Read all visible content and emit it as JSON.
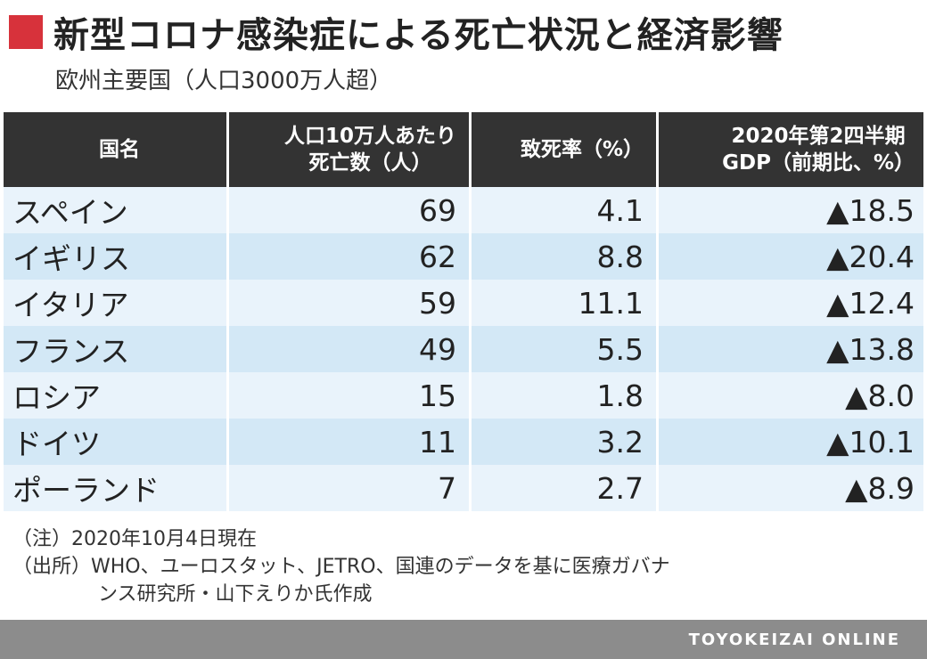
{
  "header": {
    "title": "新型コロナ感染症による死亡状況と経済影響",
    "subtitle": "欧州主要国（人口3000万人超）",
    "accent_color": "#d7323b"
  },
  "chart_data": {
    "type": "table",
    "columns": [
      "国名",
      "人口10万人あたり\n死亡数（人）",
      "致死率（%）",
      "2020年第2四半期\nGDP（前期比、%）"
    ],
    "rows": [
      [
        "スペイン",
        "69",
        "4.1",
        "▲18.5"
      ],
      [
        "イギリス",
        "62",
        "8.8",
        "▲20.4"
      ],
      [
        "イタリア",
        "59",
        "11.1",
        "▲12.4"
      ],
      [
        "フランス",
        "49",
        "5.5",
        "▲13.8"
      ],
      [
        "ロシア",
        "15",
        "1.8",
        "▲8.0"
      ],
      [
        "ドイツ",
        "11",
        "3.2",
        "▲10.1"
      ],
      [
        "ポーランド",
        "7",
        "2.7",
        "▲8.9"
      ]
    ]
  },
  "notes": {
    "note": "（注）2020年10月4日現在",
    "source_line1": "（出所）WHO、ユーロスタット、JETRO、国連のデータを基に医療ガバナ",
    "source_line2": "ンス研究所・山下えりか氏作成"
  },
  "footer": {
    "brand": "TOYOKEIZAI ONLINE"
  }
}
